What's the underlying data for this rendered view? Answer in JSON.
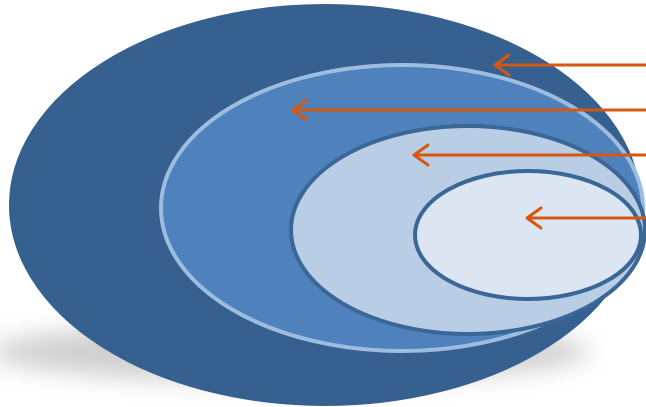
{
  "diagram": {
    "type": "nested-ellipses",
    "levels": [
      {
        "name": "outer",
        "fill": "#35608f",
        "stroke": "#35608f",
        "arrow_color": "#d4580f"
      },
      {
        "name": "second",
        "fill": "#4f81bd",
        "stroke": "#9dbde0",
        "arrow_color": "#d4580f"
      },
      {
        "name": "third",
        "fill": "#b9cde5",
        "stroke": "#3a6797",
        "arrow_color": "#d4580f"
      },
      {
        "name": "inner",
        "fill": "#dce6f2",
        "stroke": "#3a6797",
        "arrow_color": "#d4580f"
      }
    ],
    "shadow_color": "#cfcfcf",
    "arrow_direction": "left",
    "labels": []
  }
}
